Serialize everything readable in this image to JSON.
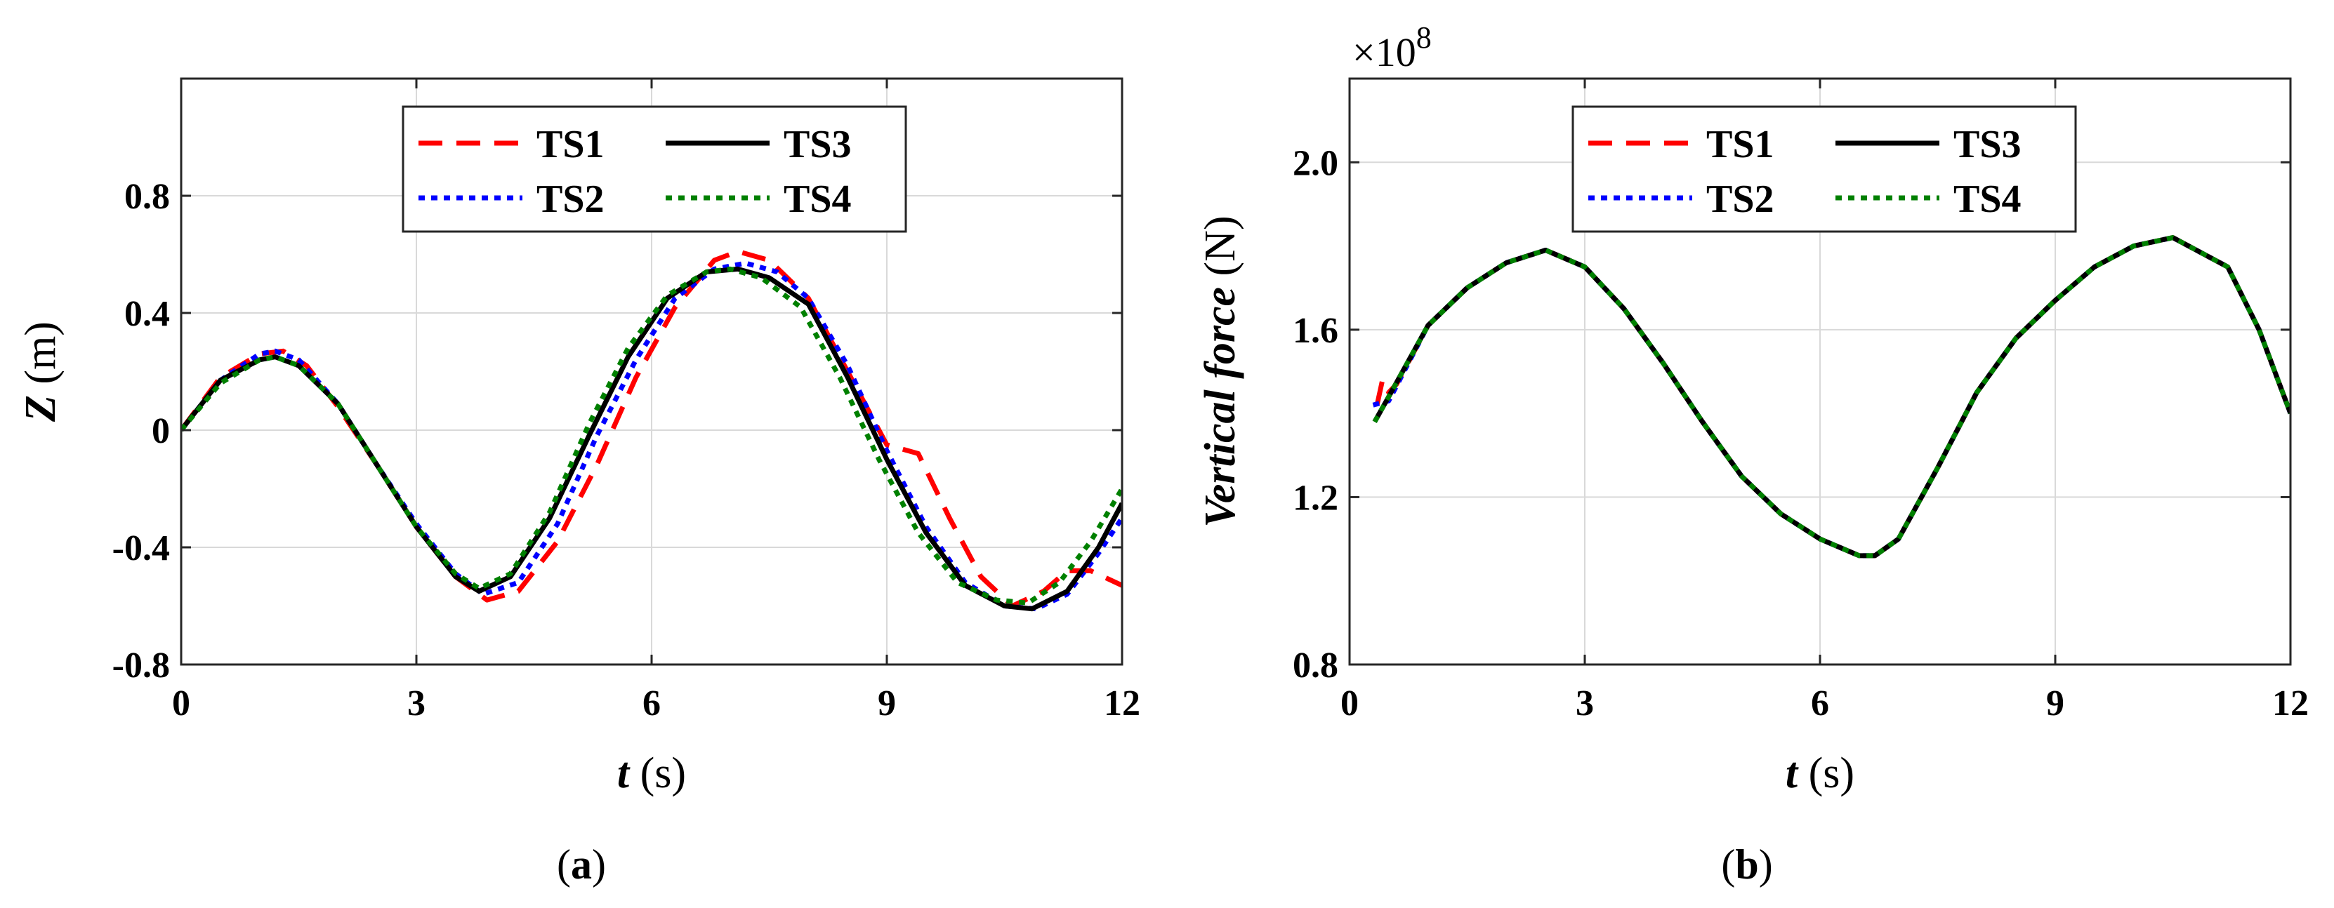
{
  "chart_data": [
    {
      "type": "line",
      "caption": "(a)",
      "ylabel_italic": "Z",
      "ylabel_unit": "(m)",
      "xlabel_italic": "t",
      "xlabel_unit": "(s)",
      "xlim": [
        0,
        12
      ],
      "ylim": [
        -0.8,
        1.2
      ],
      "xticks": [
        0,
        3,
        6,
        9,
        12
      ],
      "xtick_labels": [
        "0",
        "3",
        "6",
        "9",
        "12"
      ],
      "yticks": [
        -0.8,
        -0.4,
        0,
        0.4,
        0.8
      ],
      "ytick_labels": [
        "-0.8",
        "-0.4",
        "0",
        "0.4",
        "0.8"
      ],
      "grid": true,
      "legend_position": "top-center",
      "series": [
        {
          "name": "TS1",
          "color": "#ff0000",
          "style": "dashed",
          "x": [
            0,
            0.5,
            1,
            1.3,
            1.6,
            2,
            2.5,
            3,
            3.5,
            3.9,
            4.3,
            4.8,
            5.3,
            5.8,
            6.3,
            6.8,
            7.1,
            7.5,
            8,
            8.5,
            9,
            9.4,
            9.8,
            10.2,
            10.6,
            11,
            11.3,
            11.6,
            12
          ],
          "y": [
            0,
            0.18,
            0.26,
            0.27,
            0.22,
            0.08,
            -0.12,
            -0.33,
            -0.5,
            -0.58,
            -0.55,
            -0.38,
            -0.12,
            0.18,
            0.42,
            0.58,
            0.61,
            0.58,
            0.45,
            0.2,
            -0.05,
            -0.08,
            -0.3,
            -0.5,
            -0.6,
            -0.55,
            -0.48,
            -0.48,
            -0.53
          ]
        },
        {
          "name": "TS2",
          "color": "#0000ff",
          "style": "dotted",
          "x": [
            0,
            0.5,
            1,
            1.2,
            1.5,
            2,
            2.5,
            3,
            3.5,
            3.85,
            4.3,
            4.8,
            5.3,
            5.8,
            6.3,
            6.8,
            7.2,
            7.6,
            8,
            8.5,
            9,
            9.5,
            10,
            10.5,
            10.9,
            11.3,
            11.7,
            12
          ],
          "y": [
            0,
            0.17,
            0.26,
            0.27,
            0.24,
            0.09,
            -0.12,
            -0.32,
            -0.49,
            -0.56,
            -0.52,
            -0.32,
            -0.02,
            0.24,
            0.45,
            0.55,
            0.57,
            0.54,
            0.45,
            0.22,
            -0.07,
            -0.33,
            -0.52,
            -0.6,
            -0.61,
            -0.56,
            -0.42,
            -0.3
          ]
        },
        {
          "name": "TS3",
          "color": "#000000",
          "style": "solid",
          "x": [
            0,
            0.5,
            1,
            1.2,
            1.5,
            2,
            2.5,
            3,
            3.5,
            3.8,
            4.2,
            4.7,
            5.2,
            5.7,
            6.2,
            6.7,
            7.1,
            7.5,
            8,
            8.5,
            9,
            9.5,
            10,
            10.5,
            10.85,
            11.3,
            11.7,
            12
          ],
          "y": [
            0,
            0.17,
            0.24,
            0.25,
            0.22,
            0.09,
            -0.12,
            -0.33,
            -0.5,
            -0.55,
            -0.5,
            -0.3,
            -0.02,
            0.25,
            0.45,
            0.54,
            0.55,
            0.52,
            0.43,
            0.18,
            -0.1,
            -0.35,
            -0.53,
            -0.6,
            -0.61,
            -0.55,
            -0.4,
            -0.25
          ]
        },
        {
          "name": "TS4",
          "color": "#008000",
          "style": "dotted",
          "x": [
            0,
            0.5,
            1,
            1.2,
            1.5,
            2,
            2.5,
            3,
            3.5,
            3.8,
            4.2,
            4.7,
            5.2,
            5.7,
            6.2,
            6.7,
            7,
            7.4,
            7.9,
            8.4,
            8.9,
            9.4,
            9.9,
            10.4,
            10.8,
            11.2,
            11.6,
            12
          ],
          "y": [
            0,
            0.16,
            0.24,
            0.25,
            0.22,
            0.09,
            -0.12,
            -0.33,
            -0.49,
            -0.54,
            -0.49,
            -0.28,
            0.02,
            0.28,
            0.46,
            0.54,
            0.55,
            0.52,
            0.42,
            0.18,
            -0.1,
            -0.35,
            -0.52,
            -0.58,
            -0.59,
            -0.52,
            -0.38,
            -0.2
          ]
        }
      ]
    },
    {
      "type": "line",
      "caption": "(b)",
      "ylabel_italic": "Vertical force",
      "ylabel_unit": "(N)",
      "xlabel_italic": "t",
      "xlabel_unit": "(s)",
      "multiplier_base": "×10",
      "multiplier_exponent": "8",
      "xlim": [
        0,
        12
      ],
      "ylim": [
        0.8,
        2.2
      ],
      "xticks": [
        0,
        3,
        6,
        9,
        12
      ],
      "xtick_labels": [
        "0",
        "3",
        "6",
        "9",
        "12"
      ],
      "yticks": [
        0.8,
        1.2,
        1.6,
        2.0
      ],
      "ytick_labels": [
        "0.8",
        "1.2",
        "1.6",
        "2.0"
      ],
      "grid": true,
      "legend_position": "top-center",
      "series": [
        {
          "name": "TS1",
          "color": "#ff0000",
          "style": "dashed",
          "x": [
            0.35,
            0.42,
            0.5,
            0.6,
            1,
            1.5,
            2,
            2.5,
            3,
            3.5,
            4,
            4.5,
            5,
            5.5,
            6,
            6.5,
            6.7,
            7,
            7.5,
            8,
            8.5,
            9,
            9.5,
            10,
            10.5,
            10.8,
            11.2,
            11.6,
            12
          ],
          "y": [
            1.42,
            1.48,
            1.45,
            1.47,
            1.61,
            1.7,
            1.76,
            1.79,
            1.75,
            1.65,
            1.52,
            1.38,
            1.25,
            1.16,
            1.1,
            1.06,
            1.06,
            1.1,
            1.27,
            1.45,
            1.58,
            1.67,
            1.75,
            1.8,
            1.82,
            1.79,
            1.75,
            1.6,
            1.4
          ]
        },
        {
          "name": "TS2",
          "color": "#0000ff",
          "style": "dotted",
          "x": [
            0.3,
            0.5,
            1,
            1.5,
            2,
            2.5,
            3,
            3.5,
            4,
            4.5,
            5,
            5.5,
            6,
            6.5,
            6.7,
            7,
            7.5,
            8,
            8.5,
            9,
            9.5,
            10,
            10.5,
            10.8,
            11.2,
            11.6,
            12
          ],
          "y": [
            1.42,
            1.43,
            1.61,
            1.7,
            1.76,
            1.79,
            1.75,
            1.65,
            1.52,
            1.38,
            1.25,
            1.16,
            1.1,
            1.06,
            1.06,
            1.1,
            1.27,
            1.45,
            1.58,
            1.67,
            1.75,
            1.8,
            1.82,
            1.79,
            1.75,
            1.6,
            1.4
          ]
        },
        {
          "name": "TS3",
          "color": "#000000",
          "style": "solid",
          "x": [
            0.32,
            0.5,
            1,
            1.5,
            2,
            2.5,
            3,
            3.5,
            4,
            4.5,
            5,
            5.5,
            6,
            6.5,
            6.7,
            7,
            7.5,
            8,
            8.5,
            9,
            9.5,
            10,
            10.5,
            10.8,
            11.2,
            11.6,
            12
          ],
          "y": [
            1.38,
            1.44,
            1.61,
            1.7,
            1.76,
            1.79,
            1.75,
            1.65,
            1.52,
            1.38,
            1.25,
            1.16,
            1.1,
            1.06,
            1.06,
            1.1,
            1.27,
            1.45,
            1.58,
            1.67,
            1.75,
            1.8,
            1.82,
            1.79,
            1.75,
            1.6,
            1.4
          ]
        },
        {
          "name": "TS4",
          "color": "#008000",
          "style": "dotted",
          "x": [
            0.32,
            0.5,
            1,
            1.5,
            2,
            2.5,
            3,
            3.5,
            4,
            4.5,
            5,
            5.5,
            6,
            6.5,
            6.7,
            7,
            7.5,
            8,
            8.5,
            9,
            9.5,
            10,
            10.5,
            10.8,
            11.2,
            11.6,
            12
          ],
          "y": [
            1.38,
            1.44,
            1.61,
            1.7,
            1.76,
            1.79,
            1.75,
            1.65,
            1.52,
            1.38,
            1.25,
            1.16,
            1.1,
            1.06,
            1.06,
            1.1,
            1.27,
            1.45,
            1.58,
            1.67,
            1.75,
            1.8,
            1.82,
            1.79,
            1.75,
            1.6,
            1.4
          ]
        }
      ]
    }
  ]
}
